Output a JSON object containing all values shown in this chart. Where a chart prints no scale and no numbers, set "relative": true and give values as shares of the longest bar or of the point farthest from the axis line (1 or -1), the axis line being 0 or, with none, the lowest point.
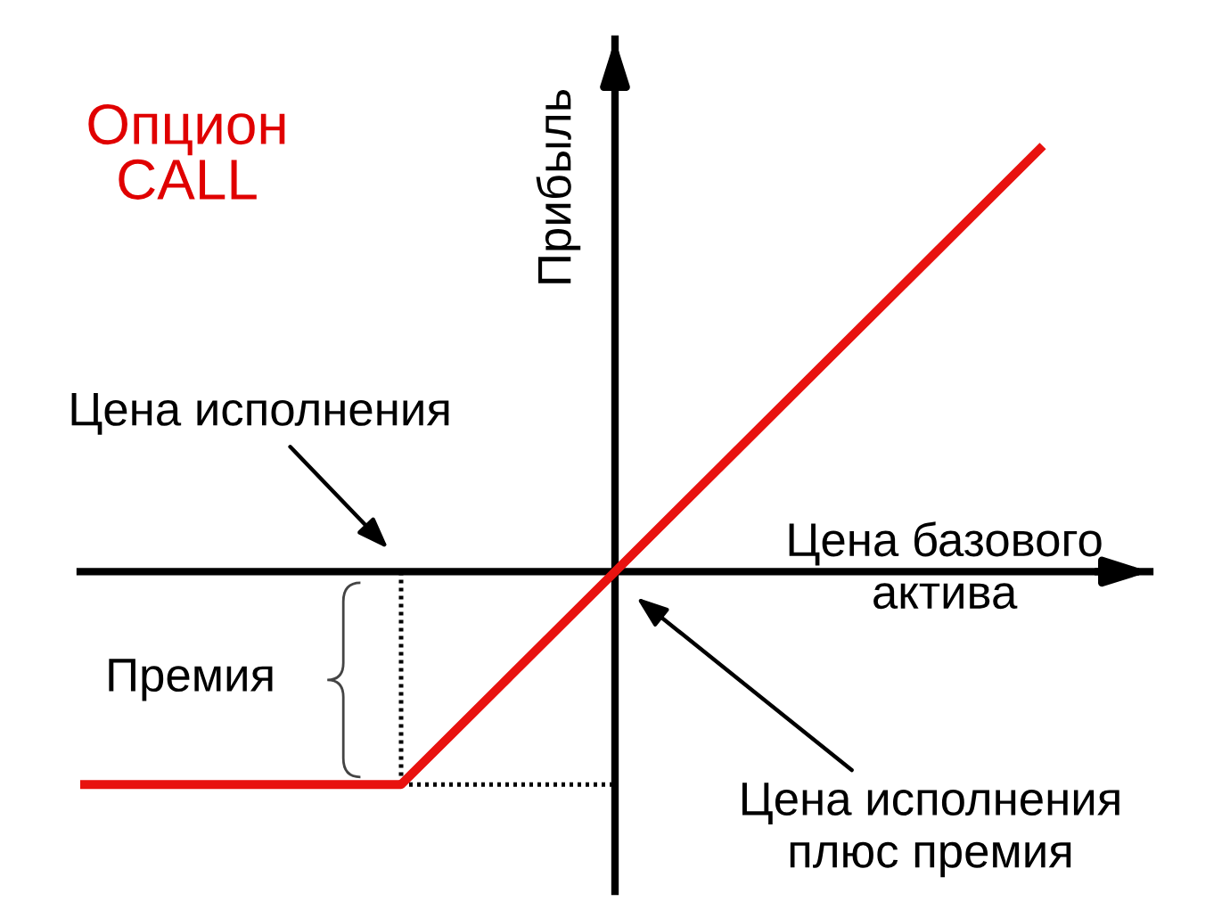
{
  "chart_data": {
    "type": "line",
    "title": "Опцион\nCALL",
    "xlabel": "Цена базового\nактива",
    "ylabel": "Прибыль",
    "categories": [
      null,
      null,
      null,
      null,
      null,
      null,
      null,
      null,
      null,
      null
    ],
    "relative": true,
    "tick_labels": false,
    "series": [
      {
        "color": "#e8120f",
        "values": [
          -0.5,
          -0.5,
          -0.5,
          -0.5,
          -0.25,
          0,
          0.25,
          0.5,
          0.75,
          1
        ]
      },
      {
        "color": "#000000",
        "line_style": "dotted",
        "values": [
          null,
          null,
          null,
          -0.5,
          -0.5,
          -0.5,
          null,
          null,
          null,
          null
        ]
      }
    ],
    "annotations": [
      "Цена исполнения",
      "Премия",
      "Цена исполнения\nплюс премия"
    ]
  }
}
